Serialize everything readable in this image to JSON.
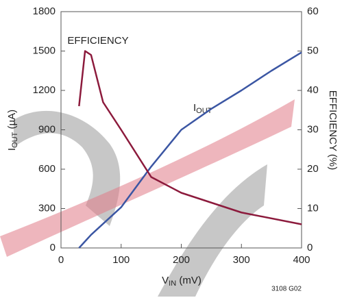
{
  "chart_data": {
    "type": "line",
    "y_label": {
      "main": "I",
      "sub": "OUT",
      "rest": " (µA)"
    },
    "x_label": {
      "main": "V",
      "sub": "IN",
      "rest": " (mV)"
    },
    "y2_label": "EFFICIENCY (%)",
    "note": "3108 G02",
    "xlim": [
      0,
      400
    ],
    "xticks": [
      0,
      100,
      200,
      300,
      400
    ],
    "ylim": [
      0,
      1800
    ],
    "yticks": [
      0,
      300,
      600,
      900,
      1200,
      1500,
      1800
    ],
    "y2lim": [
      0,
      60
    ],
    "y2ticks": [
      0,
      10,
      20,
      30,
      40,
      50,
      60
    ],
    "grid": false,
    "series": [
      {
        "name": "I",
        "name_sub": "OUT",
        "color": "#3b56a3",
        "x": [
          30,
          50,
          100,
          150,
          200,
          250,
          300,
          350,
          400
        ],
        "values": [
          0,
          100,
          310,
          620,
          900,
          1060,
          1200,
          1350,
          1490
        ]
      },
      {
        "name": "EFFICIENCY",
        "color": "#8c1a3c",
        "axis": "y2",
        "x": [
          30,
          40,
          50,
          70,
          100,
          150,
          200,
          300,
          400
        ],
        "values": [
          36,
          50,
          49,
          37,
          30,
          18,
          14,
          9,
          6
        ]
      }
    ]
  }
}
